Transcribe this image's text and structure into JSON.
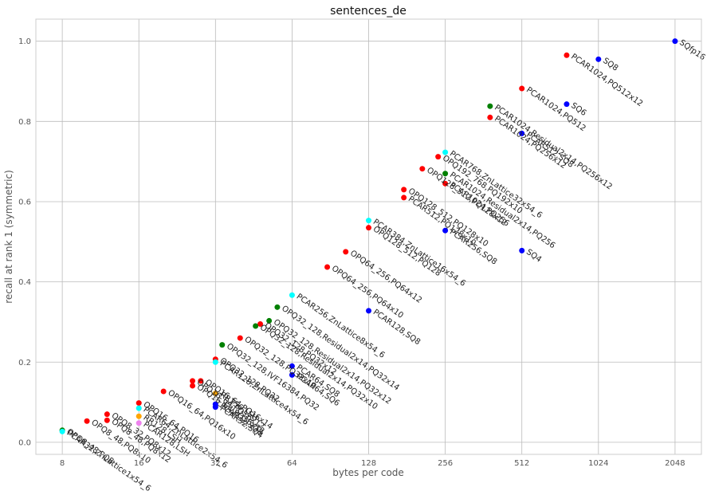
{
  "chart_data": {
    "type": "scatter",
    "title": "sentences_de",
    "xlabel": "bytes per code",
    "ylabel": "recall at rank 1 (symmetric)",
    "x_scale": "log2",
    "xlim": [
      6.3,
      2600
    ],
    "ylim": [
      -0.03,
      1.055
    ],
    "x_ticks": [
      8,
      16,
      32,
      64,
      128,
      256,
      512,
      1024,
      2048
    ],
    "x_tick_labels": [
      "8",
      "16",
      "32",
      "64",
      "128",
      "256",
      "512",
      "1024",
      "2048"
    ],
    "y_ticks": [
      0.0,
      0.2,
      0.4,
      0.6,
      0.8,
      1.0
    ],
    "y_tick_labels": [
      "0.0",
      "0.2",
      "0.4",
      "0.6",
      "0.8",
      "1.0"
    ],
    "grid": true,
    "colors": {
      "red": "#ff0000",
      "blue": "#0000ff",
      "green": "#008000",
      "cyan": "#00ffff",
      "orange": "#ffa500",
      "violet": "#ee82ee"
    },
    "points": [
      {
        "x": 2048,
        "y": 1.0,
        "color": "blue",
        "label": "SQfp16"
      },
      {
        "x": 1024,
        "y": 0.955,
        "color": "blue",
        "label": "SQ8"
      },
      {
        "x": 768,
        "y": 0.965,
        "color": "red",
        "label": "PCAR1024,PQ512x12"
      },
      {
        "x": 768,
        "y": 0.843,
        "color": "blue",
        "label": "SQ6"
      },
      {
        "x": 512,
        "y": 0.882,
        "color": "red",
        "label": "PCAR1024,PQ512"
      },
      {
        "x": 384,
        "y": 0.838,
        "color": "green",
        "label": "PCAR1024,Residual2x14,PQ256x12"
      },
      {
        "x": 384,
        "y": 0.81,
        "color": "red",
        "label": "PCAR1024,PQ256x12"
      },
      {
        "x": 512,
        "y": 0.77,
        "color": "blue",
        "label": "PCAR512,SQ8"
      },
      {
        "x": 512,
        "y": 0.478,
        "color": "blue",
        "label": "SQ4"
      },
      {
        "x": 256,
        "y": 0.723,
        "color": "cyan",
        "label": "PCAR768,ZnLattice32x54_6"
      },
      {
        "x": 240,
        "y": 0.712,
        "color": "red",
        "label": "OPQ192_768,PQ192x10"
      },
      {
        "x": 208,
        "y": 0.682,
        "color": "red",
        "label": "OPQ128_512,PQ128x12"
      },
      {
        "x": 256,
        "y": 0.67,
        "color": "green",
        "label": "PCAR1024,Residual2x14,PQ256"
      },
      {
        "x": 256,
        "y": 0.645,
        "color": "red",
        "label": "PCAR1024,PQ256"
      },
      {
        "x": 256,
        "y": 0.528,
        "color": "blue",
        "label": "PCAR256,SQ8"
      },
      {
        "x": 176,
        "y": 0.63,
        "color": "red",
        "label": "OPQ128_512,PQ128x10"
      },
      {
        "x": 176,
        "y": 0.61,
        "color": "red",
        "label": "PCAR512,PQ128x10"
      },
      {
        "x": 128,
        "y": 0.553,
        "color": "cyan",
        "label": "PCAR384,ZnLattice16x54_6"
      },
      {
        "x": 128,
        "y": 0.535,
        "color": "red",
        "label": "OPQ128_512,PQ128"
      },
      {
        "x": 128,
        "y": 0.328,
        "color": "blue",
        "label": "PCAR128,SQ8"
      },
      {
        "x": 104,
        "y": 0.475,
        "color": "red",
        "label": "OPQ64_256,PQ64x12"
      },
      {
        "x": 88,
        "y": 0.437,
        "color": "red",
        "label": "OPQ64_256,PQ64x10"
      },
      {
        "x": 64,
        "y": 0.367,
        "color": "cyan",
        "label": "PCAR256,ZnLattice8x54_6"
      },
      {
        "x": 64,
        "y": 0.19,
        "color": "blue",
        "label": "PCAR64,SQ8"
      },
      {
        "x": 64,
        "y": 0.168,
        "color": "blue",
        "label": "PCAR64,SQ6"
      },
      {
        "x": 56,
        "y": 0.337,
        "color": "green",
        "label": "OPQ32_128,Residual2x14,PQ32x14"
      },
      {
        "x": 52,
        "y": 0.303,
        "color": "green",
        "label": "OPQ32_128,Residual2x14,PQ32x12"
      },
      {
        "x": 48,
        "y": 0.295,
        "color": "red",
        "label": "OPQ32_128,PQ32x12"
      },
      {
        "x": 46,
        "y": 0.29,
        "color": "green",
        "label": "OPQ32_128,Residual2x14,PQ32x10"
      },
      {
        "x": 40,
        "y": 0.26,
        "color": "red",
        "label": "OPQ32_128,PQ32x10"
      },
      {
        "x": 34,
        "y": 0.243,
        "color": "green",
        "label": "OPQ32_128,IVF16384,PQ32"
      },
      {
        "x": 32,
        "y": 0.207,
        "color": "red",
        "label": "OPQ32_128,PQ32"
      },
      {
        "x": 32,
        "y": 0.2,
        "color": "cyan",
        "label": "PCAR128,ZnLattice4x54_6"
      },
      {
        "x": 32,
        "y": 0.122,
        "color": "orange",
        "label": "RR256,LSH"
      },
      {
        "x": 32,
        "y": 0.095,
        "color": "blue",
        "label": "PCAR32,SQ8"
      },
      {
        "x": 32,
        "y": 0.088,
        "color": "blue",
        "label": "PCAR32,SQ4"
      },
      {
        "x": 28,
        "y": 0.153,
        "color": "red",
        "label": "OPQ16_64,PQ16x14"
      },
      {
        "x": 26,
        "y": 0.153,
        "color": "red",
        "label": "OPQ16_64,PQ16x12"
      },
      {
        "x": 26,
        "y": 0.141,
        "color": "red",
        "label": "OPQ16_64,PQ16x12"
      },
      {
        "x": 20,
        "y": 0.127,
        "color": "red",
        "label": "OPQ16_64,PQ16x10"
      },
      {
        "x": 16,
        "y": 0.098,
        "color": "red",
        "label": "OPQ16_64,PQ16"
      },
      {
        "x": 16,
        "y": 0.085,
        "color": "cyan",
        "label": "PCAR64,ZnLattice2x54_6"
      },
      {
        "x": 16,
        "y": 0.065,
        "color": "orange",
        "label": "RR128,LSH"
      },
      {
        "x": 16,
        "y": 0.048,
        "color": "violet",
        "label": "PCAR128,LSH"
      },
      {
        "x": 12,
        "y": 0.07,
        "color": "red",
        "label": "OPQ8_32,PQ8x12"
      },
      {
        "x": 12,
        "y": 0.055,
        "color": "red",
        "label": "OPQ8_48,PQ8x12"
      },
      {
        "x": 10,
        "y": 0.053,
        "color": "red",
        "label": "OPQ8_48,PQ8x10"
      },
      {
        "x": 8,
        "y": 0.03,
        "color": "green",
        "label": "OPQ8_48,PQ8"
      },
      {
        "x": 8,
        "y": 0.027,
        "color": "cyan",
        "label": "PCAR32,ZnLattice1x54_6"
      }
    ]
  }
}
